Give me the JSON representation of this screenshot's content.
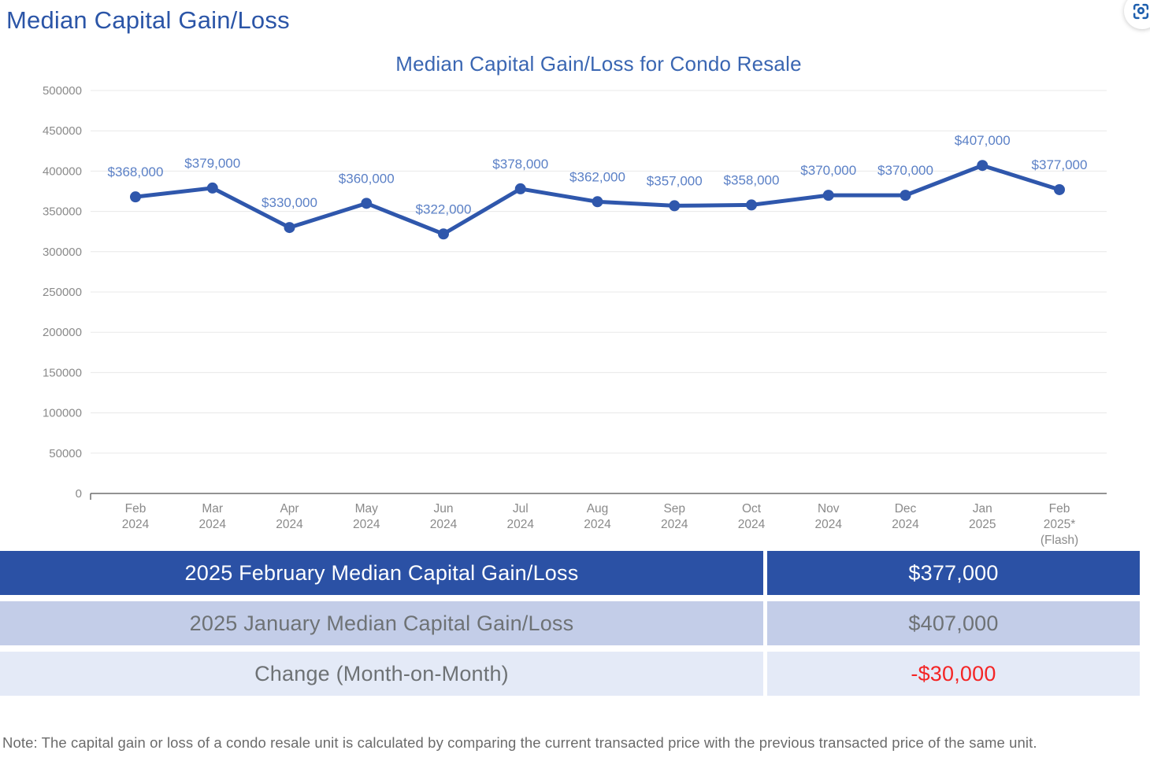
{
  "page": {
    "title": "Median Capital Gain/Loss",
    "note": "Note: The capital gain or loss of a condo resale unit is calculated by comparing the current transacted price with the previous transacted price of the same unit."
  },
  "toolbar": {
    "screenshot_icon": "screenshot-capture"
  },
  "chart_data": {
    "type": "line",
    "title": "Median Capital Gain/Loss for Condo Resale",
    "categories": [
      "Feb 2024",
      "Mar 2024",
      "Apr 2024",
      "May 2024",
      "Jun 2024",
      "Jul 2024",
      "Aug 2024",
      "Sep 2024",
      "Oct 2024",
      "Nov 2024",
      "Dec 2024",
      "Jan 2025",
      "Feb 2025* (Flash)"
    ],
    "x_tick_lines": [
      [
        "Feb",
        "2024"
      ],
      [
        "Mar",
        "2024"
      ],
      [
        "Apr",
        "2024"
      ],
      [
        "May",
        "2024"
      ],
      [
        "Jun",
        "2024"
      ],
      [
        "Jul",
        "2024"
      ],
      [
        "Aug",
        "2024"
      ],
      [
        "Sep",
        "2024"
      ],
      [
        "Oct",
        "2024"
      ],
      [
        "Nov",
        "2024"
      ],
      [
        "Dec",
        "2024"
      ],
      [
        "Jan",
        "2025"
      ],
      [
        "Feb",
        "2025*",
        "(Flash)"
      ]
    ],
    "values": [
      368000,
      379000,
      330000,
      360000,
      322000,
      378000,
      362000,
      357000,
      358000,
      370000,
      370000,
      407000,
      377000
    ],
    "point_labels": [
      "$368,000",
      "$379,000",
      "$330,000",
      "$360,000",
      "$322,000",
      "$378,000",
      "$362,000",
      "$357,000",
      "$358,000",
      "$370,000",
      "$370,000",
      "$407,000",
      "$377,000"
    ],
    "xlabel": "",
    "ylabel": "",
    "ylim": [
      0,
      500000
    ],
    "ytick_step": 50000,
    "grid": true,
    "legend": "none"
  },
  "summary_table": {
    "rows": [
      {
        "label": "2025 February Median Capital Gain/Loss",
        "value": "$377,000"
      },
      {
        "label": "2025 January Median Capital Gain/Loss",
        "value": "$407,000"
      },
      {
        "label": "Change (Month-on-Month)",
        "value": "-$30,000"
      }
    ]
  },
  "theme": {
    "heading_blue": "#2b55a7",
    "chart_title_blue": "#3a66b2",
    "line_blue": "#2f57ac",
    "point_label_blue": "#5b80c6",
    "axis_text_gray": "#8a8a8a",
    "grid_gray": "#e8e8e8",
    "axis_line_gray": "#6f6f6f",
    "row1_bg": "#2b51a5",
    "row2_bg": "#c3cde8",
    "row3_bg": "#e4eaf7",
    "table_text_gray": "#6e7275",
    "negative_red": "#f42525",
    "note_gray": "#6b6b6b",
    "icon_blue": "#1e5fae"
  }
}
